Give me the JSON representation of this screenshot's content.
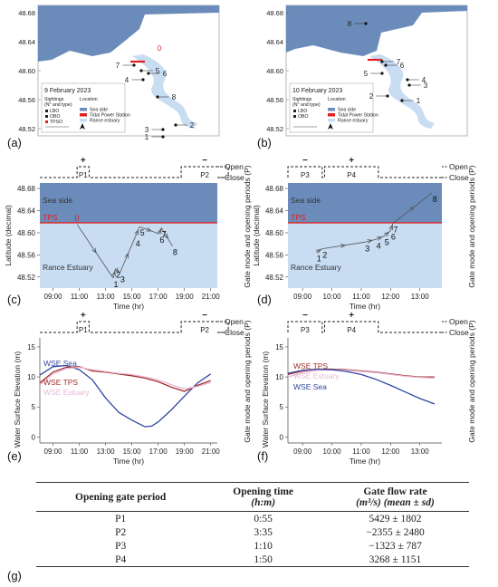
{
  "panel_letters": [
    "(a)",
    "(b)",
    "(c)",
    "(d)",
    "(e)",
    "(f)",
    "(g)"
  ],
  "maps": [
    {
      "date": "9 February 2023",
      "y_ticks": [
        "48.68",
        "48.64",
        "48.60",
        "48.56",
        "48.52"
      ],
      "sightings_legend_title": "Sightings\n(N° and type)",
      "location_legend_title": "Location",
      "sighting_types": [
        "LBO",
        "OBO",
        "TPSO"
      ],
      "location_types": [
        "Sea side",
        "Tidal Power Station",
        "Rance estuary"
      ],
      "labels": [
        "0",
        "1",
        "2",
        "3",
        "4",
        "5",
        "6",
        "7",
        "8"
      ]
    },
    {
      "date": "10 February 2023",
      "y_ticks": [
        "48.68",
        "48.64",
        "48.60",
        "48.56",
        "48.52"
      ],
      "sightings_legend_title": "Sightings\n(N° and type)",
      "location_legend_title": "Location",
      "sighting_types": [
        "LBO",
        "OBO"
      ],
      "location_types": [
        "Sea side",
        "Tidal Power Station",
        "Rance estuary"
      ],
      "labels": [
        "1",
        "2",
        "3",
        "4",
        "5",
        "6",
        "7",
        "8"
      ]
    }
  ],
  "gate_axis": {
    "label": "Gate mode and opening periods (P)",
    "open": "Open",
    "close": "Close",
    "plus": "+",
    "minus": "−"
  },
  "chart_data": [
    {
      "type": "line",
      "panel": "(c)",
      "ylabel": "Latitude (decimal)",
      "xlabel": "Time (hr)",
      "x_ticks": [
        "09:00",
        "11:00",
        "13:00",
        "15:00",
        "17:00",
        "19:00",
        "21:00"
      ],
      "y_ticks": [
        "48.68",
        "48.64",
        "48.60",
        "48.56",
        "48.52"
      ],
      "ylim": [
        48.5,
        48.69
      ],
      "zone_labels": [
        "Sea side",
        "TPS",
        "Rance Estuary"
      ],
      "tps_latitude": 48.618,
      "gate_periods": [
        "P1",
        "P2"
      ],
      "gate_signs": [
        "+",
        "−"
      ],
      "points": [
        {
          "label": "0",
          "time": "10:50",
          "lat": 48.615
        },
        {
          "label": "1",
          "time": "13:35",
          "lat": 48.518
        },
        {
          "label": "2",
          "time": "13:45",
          "lat": 48.535
        },
        {
          "label": "3",
          "time": "14:05",
          "lat": 48.527
        },
        {
          "label": "4",
          "time": "15:15",
          "lat": 48.592
        },
        {
          "label": "5",
          "time": "15:35",
          "lat": 48.611
        },
        {
          "label": "6",
          "time": "17:05",
          "lat": 48.598
        },
        {
          "label": "7",
          "time": "17:15",
          "lat": 48.609
        },
        {
          "label": "8",
          "time": "18:05",
          "lat": 48.576
        }
      ]
    },
    {
      "type": "line",
      "panel": "(d)",
      "ylabel": "Latitude (decimal)",
      "xlabel": "Time (hr)",
      "x_ticks": [
        "09:00",
        "10:00",
        "11:00",
        "12:00",
        "13:00"
      ],
      "y_ticks": [
        "48.68",
        "48.64",
        "48.60",
        "48.56",
        "48.52"
      ],
      "ylim": [
        48.5,
        48.69
      ],
      "zone_labels": [
        "Sea side",
        "TPS",
        "Rance Estuary"
      ],
      "tps_latitude": 48.618,
      "gate_periods": [
        "P3",
        "P4"
      ],
      "gate_signs": [
        "−",
        "+"
      ],
      "points": [
        {
          "label": "1",
          "time": "09:28",
          "lat": 48.565
        },
        {
          "label": "2",
          "time": "09:40",
          "lat": 48.571
        },
        {
          "label": "3",
          "time": "11:07",
          "lat": 48.583
        },
        {
          "label": "4",
          "time": "11:30",
          "lat": 48.588
        },
        {
          "label": "5",
          "time": "11:47",
          "lat": 48.594
        },
        {
          "label": "6",
          "time": "12:00",
          "lat": 48.604
        },
        {
          "label": "7",
          "time": "12:05",
          "lat": 48.617
        },
        {
          "label": "8",
          "time": "13:25",
          "lat": 48.672
        }
      ]
    },
    {
      "type": "line",
      "panel": "(e)",
      "ylabel": "Water Surface Elevation (m)",
      "xlabel": "Time (hr)",
      "x_ticks": [
        "09:00",
        "11:00",
        "13:00",
        "15:00",
        "17:00",
        "19:00",
        "21:00"
      ],
      "y_ticks": [
        "15",
        "10",
        "5",
        "0"
      ],
      "ylim": [
        -1,
        16.5
      ],
      "gate_periods": [
        "P1",
        "P2"
      ],
      "gate_signs": [
        "+",
        "−"
      ],
      "series": [
        {
          "name": "WSE Sea",
          "x": [
            "08:00",
            "09:00",
            "10:00",
            "11:00",
            "12:00",
            "13:00",
            "14:00",
            "15:00",
            "16:00",
            "16:30",
            "17:00",
            "18:00",
            "19:00",
            "20:00",
            "21:00"
          ],
          "values": [
            10.3,
            11.7,
            11.9,
            11.2,
            9.5,
            6.5,
            4.1,
            2.8,
            1.7,
            1.8,
            2.5,
            4.5,
            6.8,
            9.0,
            10.5
          ]
        },
        {
          "name": "WSE TPS",
          "x": [
            "08:00",
            "09:00",
            "10:00",
            "11:00",
            "12:00",
            "13:00",
            "14:00",
            "15:00",
            "16:00",
            "17:00",
            "18:00",
            "19:00",
            "20:00",
            "21:00"
          ],
          "values": [
            9.0,
            10.8,
            11.6,
            11.7,
            11.0,
            10.8,
            10.5,
            10.2,
            9.8,
            9.2,
            8.3,
            7.6,
            8.6,
            9.4
          ]
        },
        {
          "name": "WSE Estuary",
          "x": [
            "08:00",
            "09:00",
            "10:00",
            "11:00",
            "12:00",
            "13:00",
            "14:00",
            "15:00",
            "16:00",
            "17:00",
            "18:00",
            "19:00",
            "20:00",
            "21:00"
          ],
          "values": [
            8.7,
            10.5,
            11.4,
            11.6,
            11.2,
            10.9,
            10.6,
            10.4,
            10.0,
            9.5,
            8.7,
            8.0,
            8.4,
            9.1
          ]
        }
      ]
    },
    {
      "type": "line",
      "panel": "(f)",
      "ylabel": "Water Surface Elevation (m)",
      "xlabel": "Time (hr)",
      "x_ticks": [
        "09:00",
        "10:00",
        "11:00",
        "12:00",
        "13:00"
      ],
      "y_ticks": [
        "15",
        "10",
        "5",
        "0"
      ],
      "ylim": [
        -1,
        16.5
      ],
      "gate_periods": [
        "P3",
        "P4"
      ],
      "gate_signs": [
        "−",
        "+"
      ],
      "series": [
        {
          "name": "WSE TPS",
          "x": [
            "08:30",
            "09:00",
            "09:30",
            "10:00",
            "10:30",
            "11:00",
            "11:30",
            "12:00",
            "12:30",
            "13:00",
            "13:30"
          ],
          "values": [
            10.4,
            11.0,
            11.3,
            11.3,
            11.2,
            11.0,
            10.8,
            10.5,
            10.2,
            10.0,
            10.0
          ]
        },
        {
          "name": "WSE Estuary",
          "x": [
            "08:30",
            "09:00",
            "09:30",
            "10:00",
            "10:30",
            "11:00",
            "11:30",
            "12:00",
            "12:30",
            "13:00",
            "13:30"
          ],
          "values": [
            10.0,
            10.7,
            11.1,
            11.2,
            11.1,
            10.9,
            10.7,
            10.4,
            10.1,
            9.9,
            9.8
          ]
        },
        {
          "name": "WSE Sea",
          "x": [
            "08:30",
            "09:00",
            "09:30",
            "10:00",
            "10:30",
            "11:00",
            "11:30",
            "12:00",
            "12:30",
            "13:00",
            "13:30"
          ],
          "values": [
            10.6,
            11.1,
            11.3,
            11.2,
            10.9,
            10.4,
            9.6,
            8.6,
            7.5,
            6.4,
            5.5
          ]
        }
      ]
    },
    {
      "type": "table",
      "panel": "(g)",
      "headers": [
        "Opening gate period",
        "Opening time",
        "Gate flow rate"
      ],
      "sub_headers": [
        "",
        "(h:m)",
        "(m³/s) (mean ± sd)"
      ],
      "rows": [
        [
          "P1",
          "0:55",
          "5429 ± 1802"
        ],
        [
          "P2",
          "3:35",
          "−2355 ± 2480"
        ],
        [
          "P3",
          "1:10",
          "−1323 ± 787"
        ],
        [
          "P4",
          "1:50",
          "3268 ± 1151"
        ]
      ]
    }
  ],
  "colors": {
    "sea": "#6b8cba",
    "estuary": "#c8dcf2",
    "land": "#ffffff",
    "tps": "#e02020",
    "wse_sea": "#2f47a0",
    "wse_tps": "#a0302a",
    "wse_estuary": "#e8b8d8"
  }
}
